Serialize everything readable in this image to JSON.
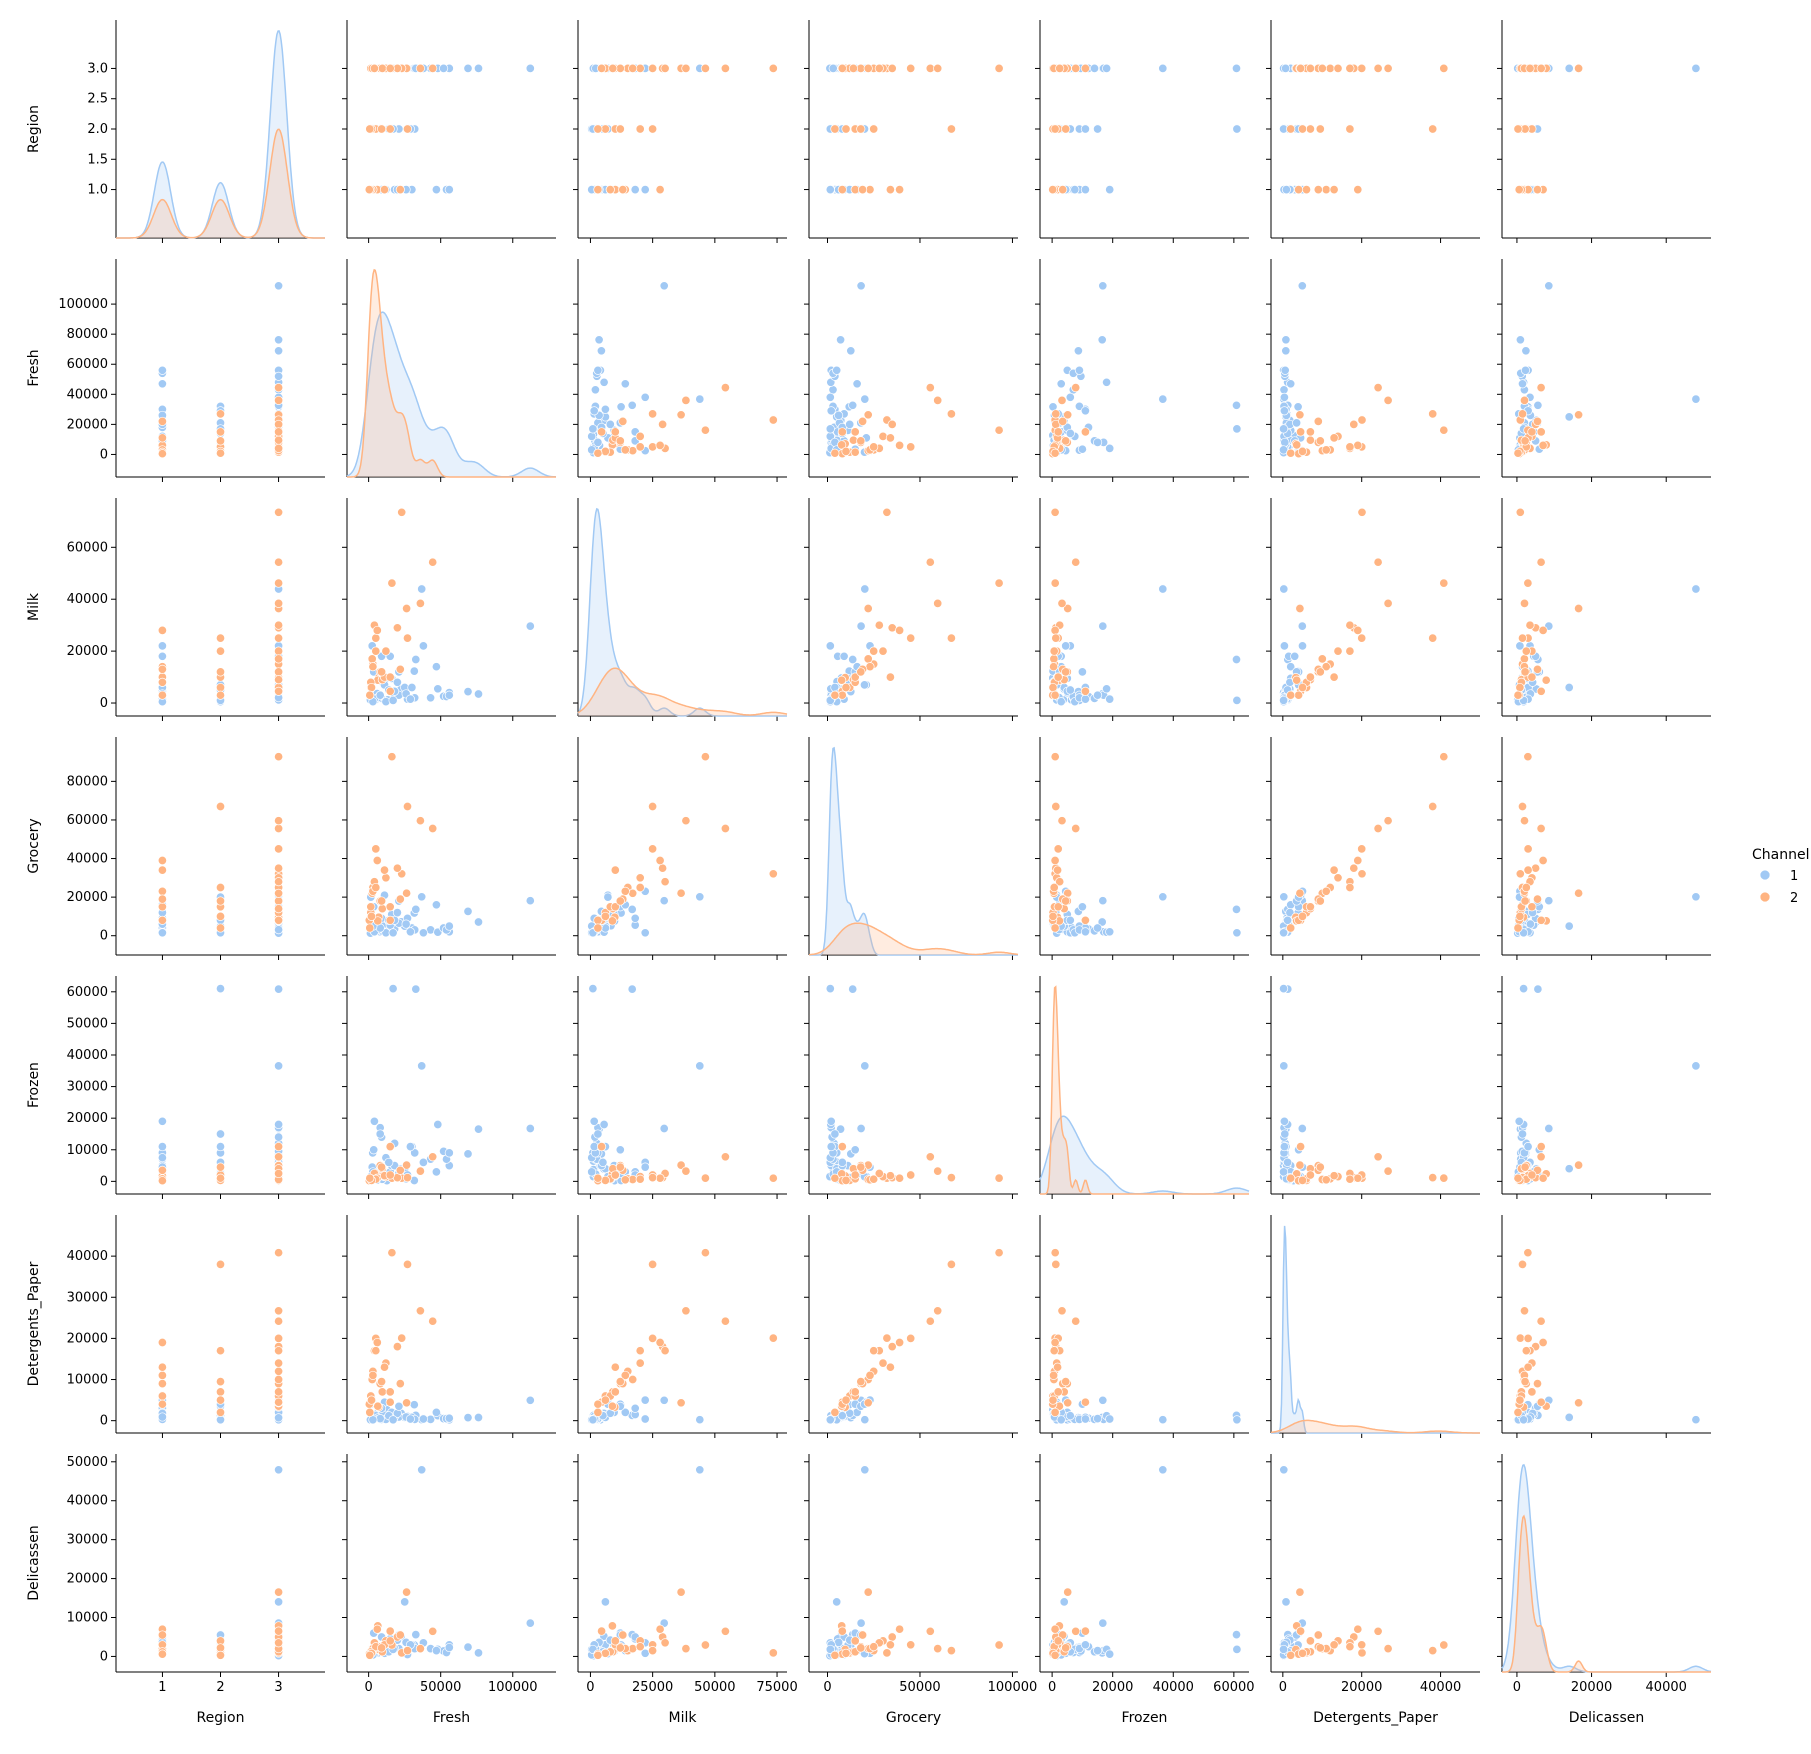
{
  "chart_data": {
    "type": "scatter",
    "subtype": "pairplot",
    "variables": [
      "Region",
      "Fresh",
      "Milk",
      "Grocery",
      "Frozen",
      "Detergents_Paper",
      "Delicassen"
    ],
    "axis_labels": [
      "Region",
      "Fresh",
      "Milk",
      "Grocery",
      "Frozen",
      "Detergents_Paper",
      "Delicassen"
    ],
    "diagonal": "kde",
    "hue": "Channel",
    "legend": {
      "title": "Channel",
      "position": "right-center",
      "entries": [
        {
          "label": "1",
          "color": "#a1c9f4"
        },
        {
          "label": "2",
          "color": "#ffb482"
        }
      ]
    },
    "grid": false,
    "ranges": {
      "Region": [
        0.2,
        3.8
      ],
      "Fresh": [
        -15000,
        130000
      ],
      "Milk": [
        -5000,
        79000
      ],
      "Grocery": [
        -10000,
        103000
      ],
      "Frozen": [
        -4000,
        65000
      ],
      "Detergents_Paper": [
        -3000,
        50000
      ],
      "Delicassen": [
        -4000,
        52000
      ]
    },
    "ticks": {
      "Region": {
        "values": [
          1,
          2,
          3
        ],
        "labels": [
          "1",
          "2",
          "3"
        ]
      },
      "Fresh": {
        "values": [
          0,
          50000,
          100000
        ],
        "labels": [
          "0",
          "50000",
          "100000"
        ]
      },
      "Milk": {
        "values": [
          0,
          25000,
          50000,
          75000
        ],
        "labels": [
          "0",
          "25000",
          "50000",
          "75000"
        ]
      },
      "Grocery": {
        "values": [
          0,
          50000,
          100000
        ],
        "labels": [
          "0",
          "50000",
          "100000"
        ]
      },
      "Frozen": {
        "values": [
          0,
          20000,
          40000,
          60000
        ],
        "labels": [
          "0",
          "20000",
          "40000",
          "60000"
        ]
      },
      "Detergents_Paper": {
        "values": [
          0,
          20000,
          40000
        ],
        "labels": [
          "0",
          "20000",
          "40000"
        ]
      },
      "Delicassen": {
        "values": [
          0,
          20000,
          40000
        ],
        "labels": [
          "0",
          "20000",
          "40000"
        ]
      }
    },
    "yticks": {
      "Region": {
        "values": [
          1.0,
          1.5,
          2.0,
          2.5,
          3.0
        ],
        "labels": [
          "1.0",
          "1.5",
          "2.0",
          "2.5",
          "3.0"
        ]
      },
      "Fresh": {
        "values": [
          0,
          20000,
          40000,
          60000,
          80000,
          100000
        ],
        "labels": [
          "0",
          "20000",
          "40000",
          "60000",
          "80000",
          "100000"
        ]
      },
      "Milk": {
        "values": [
          0,
          20000,
          40000,
          60000
        ],
        "labels": [
          "0",
          "20000",
          "40000",
          "60000"
        ]
      },
      "Grocery": {
        "values": [
          0,
          20000,
          40000,
          60000,
          80000
        ],
        "labels": [
          "0",
          "20000",
          "40000",
          "60000",
          "80000"
        ]
      },
      "Frozen": {
        "values": [
          0,
          10000,
          20000,
          30000,
          40000,
          50000,
          60000
        ],
        "labels": [
          "0",
          "10000",
          "20000",
          "30000",
          "40000",
          "50000",
          "60000"
        ]
      },
      "Detergents_Paper": {
        "values": [
          0,
          10000,
          20000,
          30000,
          40000
        ],
        "labels": [
          "0",
          "10000",
          "20000",
          "30000",
          "40000"
        ]
      },
      "Delicassen": {
        "values": [
          0,
          10000,
          20000,
          30000,
          40000,
          50000
        ],
        "labels": [
          "0",
          "10000",
          "20000",
          "30000",
          "40000",
          "50000"
        ]
      }
    },
    "series": [
      {
        "name": "1",
        "color": "#a1c9f4",
        "points": [
          [
            3,
            12669,
            9656,
            7561,
            214,
            2674,
            1338
          ],
          [
            3,
            13265,
            1196,
            4221,
            6404,
            507,
            1788
          ],
          [
            3,
            22615,
            5410,
            7198,
            3915,
            1777,
            5185
          ],
          [
            3,
            31714,
            12319,
            11757,
            287,
            3881,
            2931
          ],
          [
            3,
            5963,
            3648,
            6192,
            425,
            1716,
            750
          ],
          [
            3,
            9413,
            8259,
            5126,
            666,
            1795,
            1451
          ],
          [
            3,
            4760,
            1227,
            3250,
            3724,
            1247,
            1145
          ],
          [
            3,
            2800,
            1000,
            3800,
            9000,
            400,
            1000
          ],
          [
            3,
            43000,
            2000,
            3000,
            7000,
            300,
            2000
          ],
          [
            3,
            56000,
            4000,
            2000,
            5000,
            200,
            3000
          ],
          [
            3,
            68951,
            4411,
            12609,
            8692,
            751,
            2406
          ],
          [
            3,
            76237,
            3473,
            7102,
            16538,
            778,
            918
          ],
          [
            3,
            112151,
            29627,
            18148,
            16745,
            4948,
            8550
          ],
          [
            3,
            36847,
            43950,
            20170,
            36534,
            239,
            47943
          ],
          [
            3,
            32717,
            16784,
            13626,
            60869,
            1272,
            5609
          ],
          [
            3,
            8000,
            3000,
            2000,
            17000,
            300,
            1500
          ],
          [
            3,
            25000,
            6000,
            5000,
            4000,
            800,
            14000
          ],
          [
            3,
            18000,
            2500,
            3500,
            12000,
            600,
            2500
          ],
          [
            3,
            38000,
            22000,
            1500,
            6000,
            400,
            3500
          ],
          [
            3,
            27000,
            1500,
            9000,
            2000,
            1000,
            500
          ],
          [
            3,
            15000,
            18000,
            5500,
            3000,
            1500,
            4500
          ],
          [
            3,
            48000,
            5500,
            1800,
            18000,
            1200,
            1800
          ],
          [
            3,
            3500,
            12000,
            15000,
            10000,
            4000,
            6000
          ],
          [
            3,
            11000,
            7000,
            21000,
            1500,
            4500,
            800
          ],
          [
            3,
            21000,
            3000,
            6500,
            1000,
            900,
            2000
          ],
          [
            3,
            9000,
            1800,
            2500,
            14000,
            300,
            1200
          ],
          [
            3,
            52000,
            2600,
            4000,
            9500,
            500,
            1400
          ],
          [
            3,
            16000,
            9500,
            11000,
            5000,
            2000,
            2800
          ],
          [
            3,
            1200,
            1200,
            1300,
            1500,
            200,
            200
          ],
          [
            3,
            6500,
            2100,
            3100,
            2300,
            700,
            900
          ],
          [
            1,
            18000,
            4500,
            8000,
            5000,
            1000,
            2000
          ],
          [
            1,
            54000,
            2500,
            3000,
            7000,
            500,
            1000
          ],
          [
            1,
            56000,
            3000,
            5000,
            9000,
            600,
            2300
          ],
          [
            1,
            30000,
            6000,
            4000,
            11000,
            800,
            3000
          ],
          [
            1,
            9000,
            18000,
            9000,
            2000,
            3000,
            5000
          ],
          [
            1,
            4000,
            1500,
            2000,
            19000,
            400,
            600
          ],
          [
            1,
            47000,
            14000,
            16000,
            3000,
            2000,
            1500
          ],
          [
            1,
            20000,
            8000,
            12000,
            1200,
            1800,
            4200
          ],
          [
            1,
            12000,
            500,
            1500,
            7500,
            300,
            1800
          ],
          [
            1,
            2500,
            22000,
            23000,
            4500,
            5000,
            800
          ],
          [
            1,
            26000,
            3500,
            6000,
            800,
            900,
            3600
          ],
          [
            2,
            8000,
            3000,
            4000,
            15000,
            500,
            1500
          ],
          [
            2,
            32000,
            2000,
            3000,
            9000,
            300,
            2000
          ],
          [
            2,
            3000,
            500,
            5000,
            3000,
            200,
            400
          ],
          [
            2,
            21000,
            12000,
            18000,
            2500,
            3500,
            5500
          ],
          [
            2,
            14000,
            5000,
            8000,
            6000,
            1200,
            1200
          ],
          [
            2,
            29000,
            1500,
            2000,
            11000,
            400,
            3000
          ],
          [
            2,
            1500,
            7000,
            20000,
            1500,
            4000,
            700
          ],
          [
            2,
            17000,
            1000,
            1500,
            61000,
            200,
            1800
          ]
        ]
      },
      {
        "name": "2",
        "color": "#ffb482",
        "points": [
          [
            3,
            7057,
            9810,
            9568,
            1762,
            3293,
            1776
          ],
          [
            3,
            6353,
            8808,
            7684,
            2405,
            3516,
            7844
          ],
          [
            3,
            26373,
            36423,
            22019,
            5154,
            4337,
            16523
          ],
          [
            3,
            44466,
            54259,
            55571,
            7782,
            24171,
            6465
          ],
          [
            3,
            22925,
            73498,
            32114,
            987,
            20070,
            903
          ],
          [
            3,
            16117,
            46197,
            92780,
            1026,
            40827,
            2944
          ],
          [
            3,
            35942,
            38369,
            59598,
            3254,
            26701,
            2017
          ],
          [
            3,
            3000,
            15000,
            25000,
            800,
            12000,
            1500
          ],
          [
            3,
            12000,
            20000,
            30000,
            1500,
            14000,
            4000
          ],
          [
            3,
            5000,
            25000,
            45000,
            2000,
            20000,
            3000
          ],
          [
            3,
            8000,
            12000,
            18000,
            5000,
            9000,
            2500
          ],
          [
            3,
            1500,
            6000,
            12000,
            300,
            6000,
            900
          ],
          [
            3,
            20000,
            29000,
            35000,
            1200,
            18000,
            5000
          ],
          [
            3,
            9500,
            9000,
            14000,
            4000,
            7000,
            1200
          ],
          [
            3,
            2500,
            17000,
            22000,
            600,
            10000,
            2000
          ],
          [
            3,
            15000,
            4500,
            8000,
            11000,
            4500,
            6500
          ],
          [
            3,
            4000,
            30000,
            28000,
            2500,
            17000,
            3500
          ],
          [
            1,
            6000,
            28000,
            39000,
            1000,
            19000,
            7000
          ],
          [
            1,
            3000,
            14000,
            23000,
            500,
            11000,
            2000
          ],
          [
            1,
            11000,
            10000,
            34000,
            1800,
            13000,
            3000
          ],
          [
            1,
            1500,
            8000,
            15000,
            800,
            6000,
            1200
          ],
          [
            1,
            22000,
            13000,
            19000,
            3500,
            9000,
            5500
          ],
          [
            1,
            500,
            3000,
            8000,
            200,
            4000,
            600
          ],
          [
            2,
            27000,
            25000,
            67000,
            1200,
            38000,
            1500
          ],
          [
            2,
            5000,
            20000,
            25000,
            700,
            17000,
            2500
          ],
          [
            2,
            15000,
            10000,
            15000,
            2000,
            7000,
            4000
          ],
          [
            2,
            2000,
            6000,
            10000,
            300,
            5000,
            800
          ],
          [
            2,
            9000,
            12000,
            18000,
            4500,
            9500,
            2200
          ],
          [
            2,
            800,
            3000,
            4000,
            1000,
            2000,
            300
          ]
        ]
      }
    ],
    "kde_peaks": {
      "Region": {
        "1": 3.0,
        "2": 1.9
      }
    }
  }
}
